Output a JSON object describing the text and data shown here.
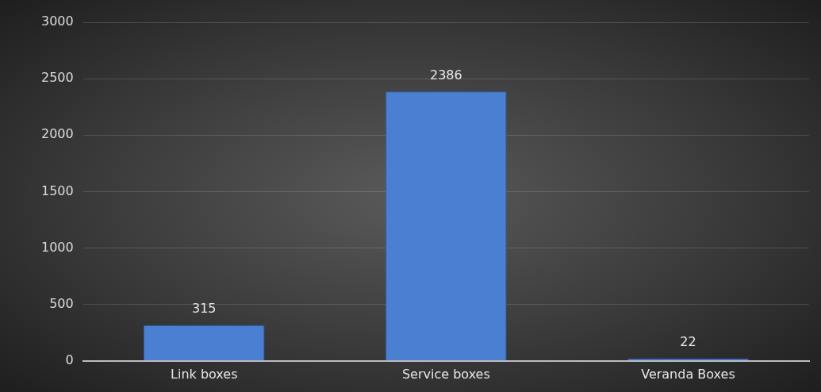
{
  "chart_data": {
    "type": "bar",
    "categories": [
      "Link boxes",
      "Service boxes",
      "Veranda Boxes"
    ],
    "values": [
      315,
      2386,
      22
    ],
    "color": "#4a7fd2",
    "ylim": [
      0,
      3000
    ],
    "yticks": [
      0,
      500,
      1000,
      1500,
      2000,
      2500,
      3000
    ],
    "grid": "y",
    "data_labels": true
  }
}
